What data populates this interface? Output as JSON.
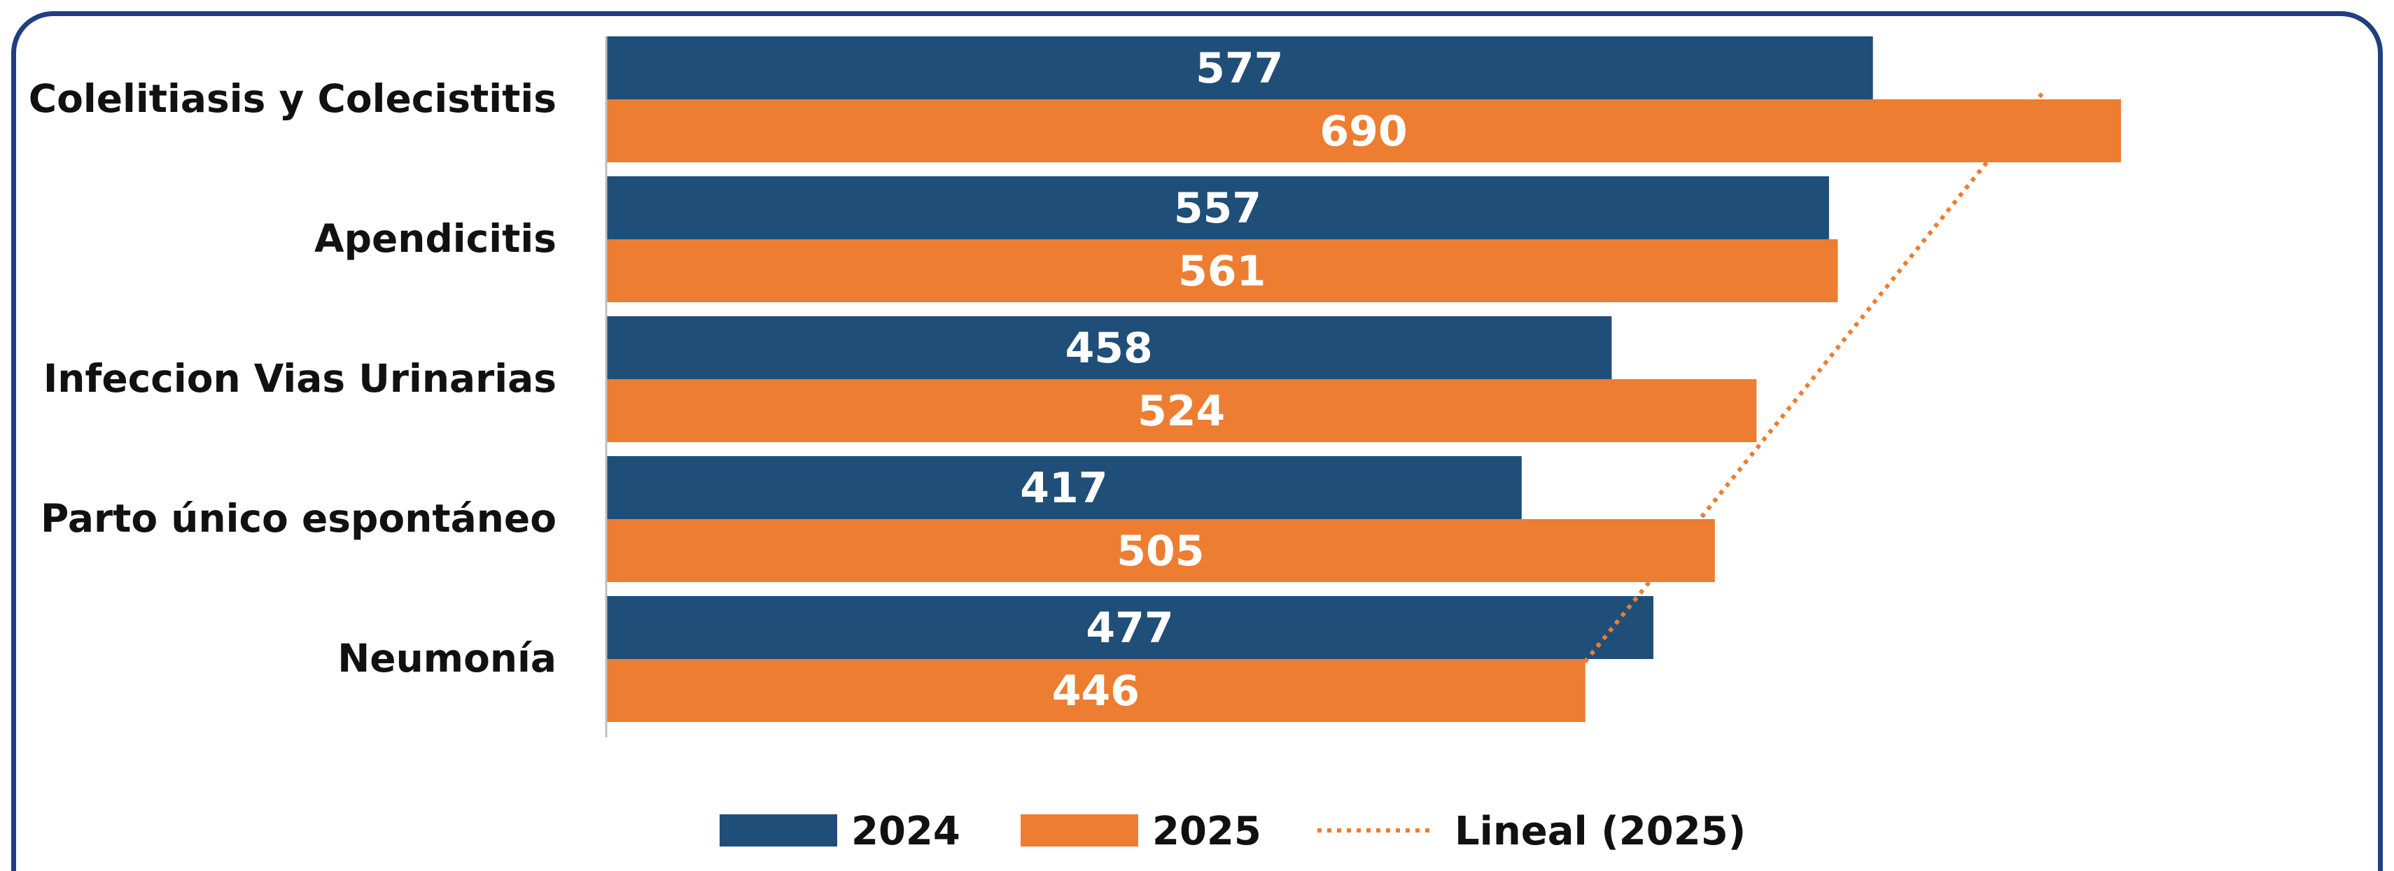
{
  "chart_data": {
    "type": "bar",
    "orientation": "horizontal",
    "categories": [
      "Colelitiasis y Colecistitis",
      "Apendicitis",
      "Infeccion Vias Urinarias",
      "Parto único espontáneo",
      "Neumonía"
    ],
    "series": [
      {
        "name": "2024",
        "color": "#1f4e79",
        "values": [
          577,
          557,
          458,
          417,
          477
        ]
      },
      {
        "name": "2025",
        "color": "#ed7d31",
        "values": [
          690,
          561,
          524,
          505,
          446
        ]
      }
    ],
    "trendline": {
      "name": "Lineal (2025)",
      "series": "2025",
      "type": "linear",
      "style": "dotted",
      "color": "#ed7d31"
    },
    "xlim": [
      0,
      700
    ],
    "data_labels": true,
    "grid": false,
    "legend_position": "bottom"
  }
}
